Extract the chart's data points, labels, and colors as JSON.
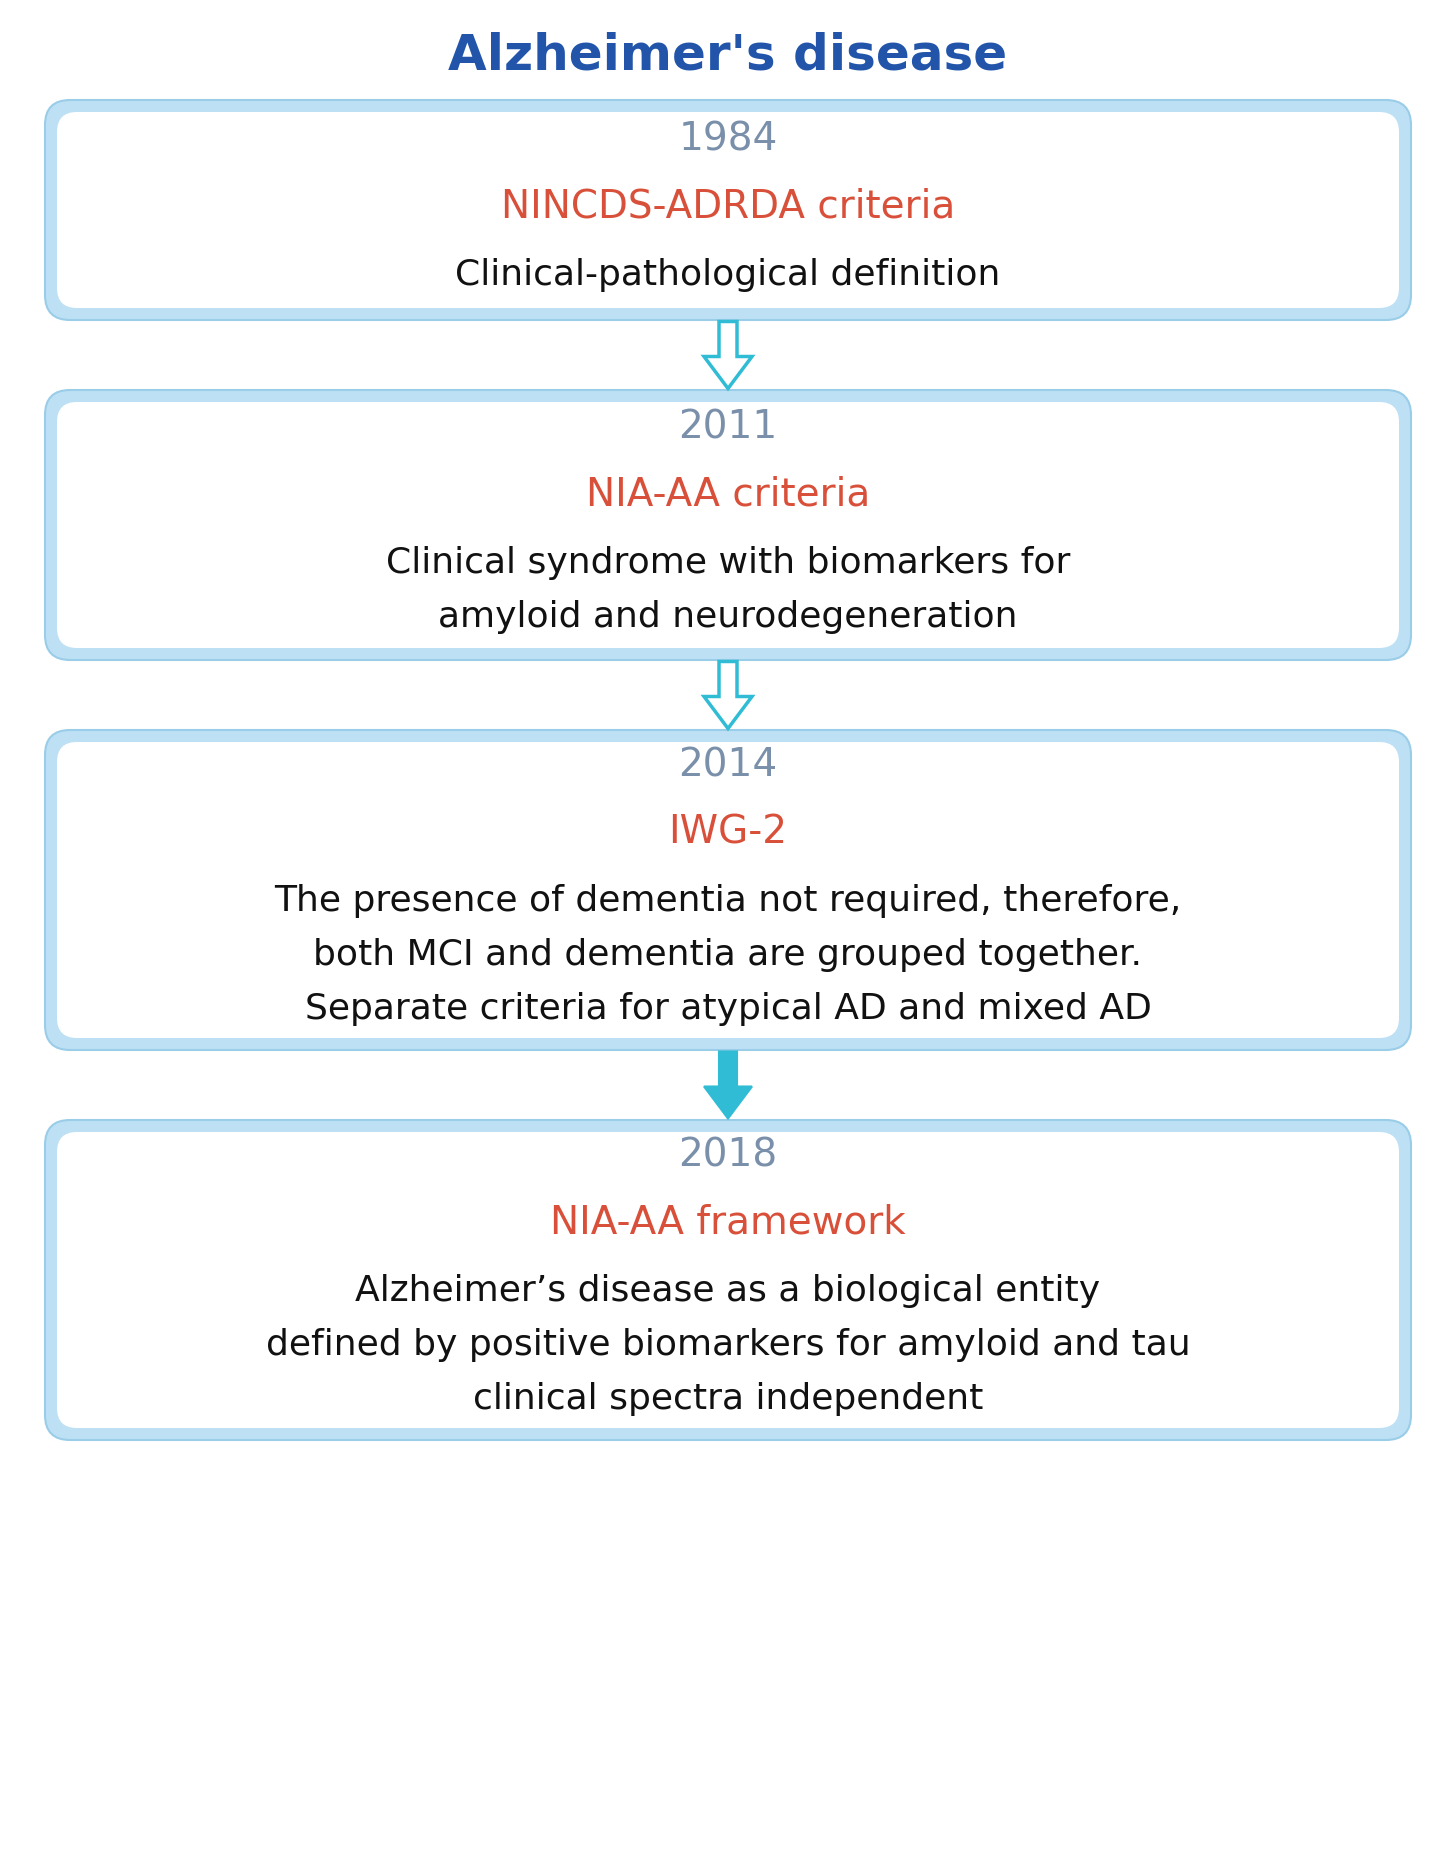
{
  "title": "Alzheimer's disease",
  "title_color": "#2255aa",
  "title_fontsize": 36,
  "background_color": "#ffffff",
  "outer_bg_color": "#bde0f5",
  "inner_box_color": "#ffffff",
  "box_border_color": "#9acde8",
  "arrow_color": "#30bcd4",
  "arrow_outline_color": "#30bcd4",
  "year_color": "#7a90aa",
  "criteria_color": "#d9503a",
  "desc_color": "#111111",
  "boxes": [
    {
      "year": "1984",
      "criteria": "NINCDS-ADRDA criteria",
      "desc_lines": [
        "Clinical-pathological definition"
      ],
      "arrow_hollow": true
    },
    {
      "year": "2011",
      "criteria": "NIA-AA criteria",
      "desc_lines": [
        "Clinical syndrome with biomarkers for",
        "amyloid and neurodegeneration"
      ],
      "arrow_hollow": true
    },
    {
      "year": "2014",
      "criteria": "IWG-2",
      "desc_lines": [
        "The presence of dementia not required, therefore,",
        "both MCI and dementia are grouped together.",
        "Separate criteria for atypical AD and mixed AD"
      ],
      "arrow_hollow": false
    },
    {
      "year": "2018",
      "criteria": "NIA-AA framework",
      "desc_lines": [
        "Alzheimer’s disease as a biological entity",
        "defined by positive biomarkers for amyloid and tau",
        "clinical spectra independent"
      ],
      "arrow_hollow": false
    }
  ],
  "year_fontsize": 28,
  "criteria_fontsize": 28,
  "desc_fontsize": 26
}
